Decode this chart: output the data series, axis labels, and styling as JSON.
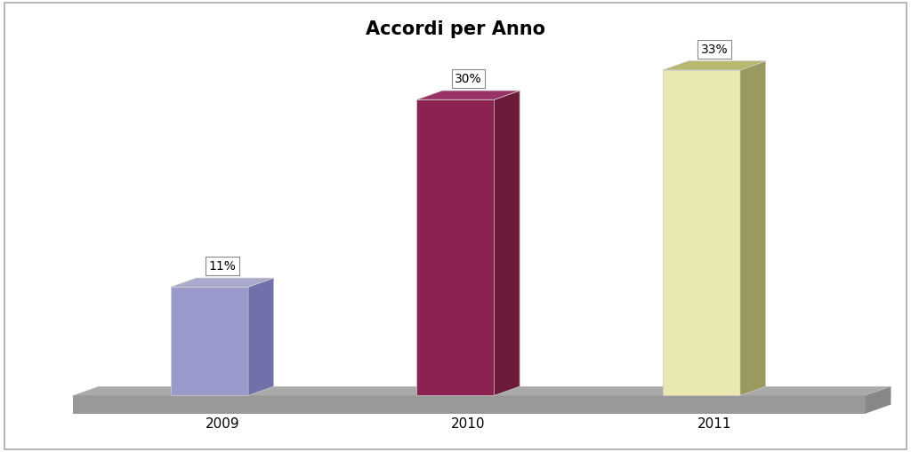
{
  "title": "Accordi per Anno",
  "categories": [
    "2009",
    "2010",
    "2011"
  ],
  "values": [
    11,
    30,
    33
  ],
  "labels": [
    "11%",
    "30%",
    "33%"
  ],
  "bar_face_colors": [
    "#9999cc",
    "#8b2252",
    "#e8e8b0"
  ],
  "bar_side_colors": [
    "#7070aa",
    "#6b1a3a",
    "#999960"
  ],
  "bar_top_colors": [
    "#aaaacc",
    "#993366",
    "#b8b870"
  ],
  "background_color": "#ffffff",
  "floor_top_color": "#aaaaaa",
  "floor_front_color": "#999999",
  "floor_side_color": "#888888",
  "title_fontsize": 15,
  "label_fontsize": 10,
  "cat_fontsize": 11
}
